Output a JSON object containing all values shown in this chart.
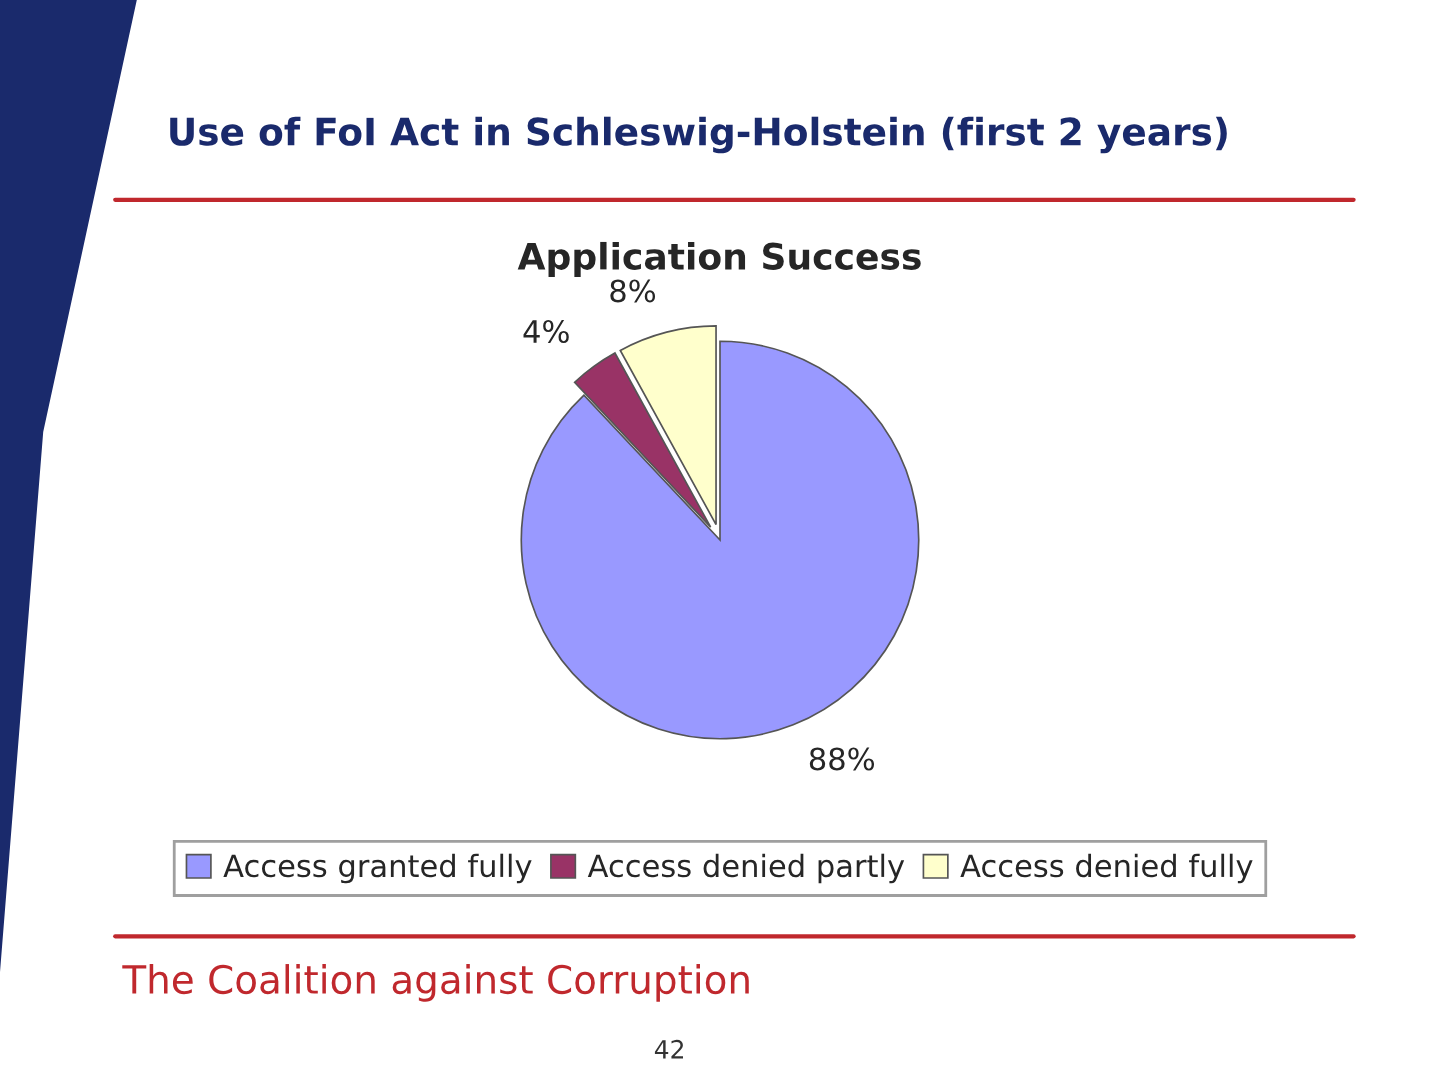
{
  "chart_data": {
    "type": "pie",
    "title": "Use of FoI Act in Schleswig-Holstein (first 2 years)",
    "subtitle": "Application Success",
    "categories": [
      "Access granted fully",
      "Access denied partly",
      "Access denied fully"
    ],
    "values": [
      88,
      4,
      8
    ],
    "value_labels": [
      "88%",
      "4%",
      "8%"
    ],
    "colors": [
      "#9999ff",
      "#993366",
      "#ffffcc"
    ],
    "legend": "bottom",
    "annotations": [
      "The Coalition against Corruption",
      "42"
    ]
  }
}
